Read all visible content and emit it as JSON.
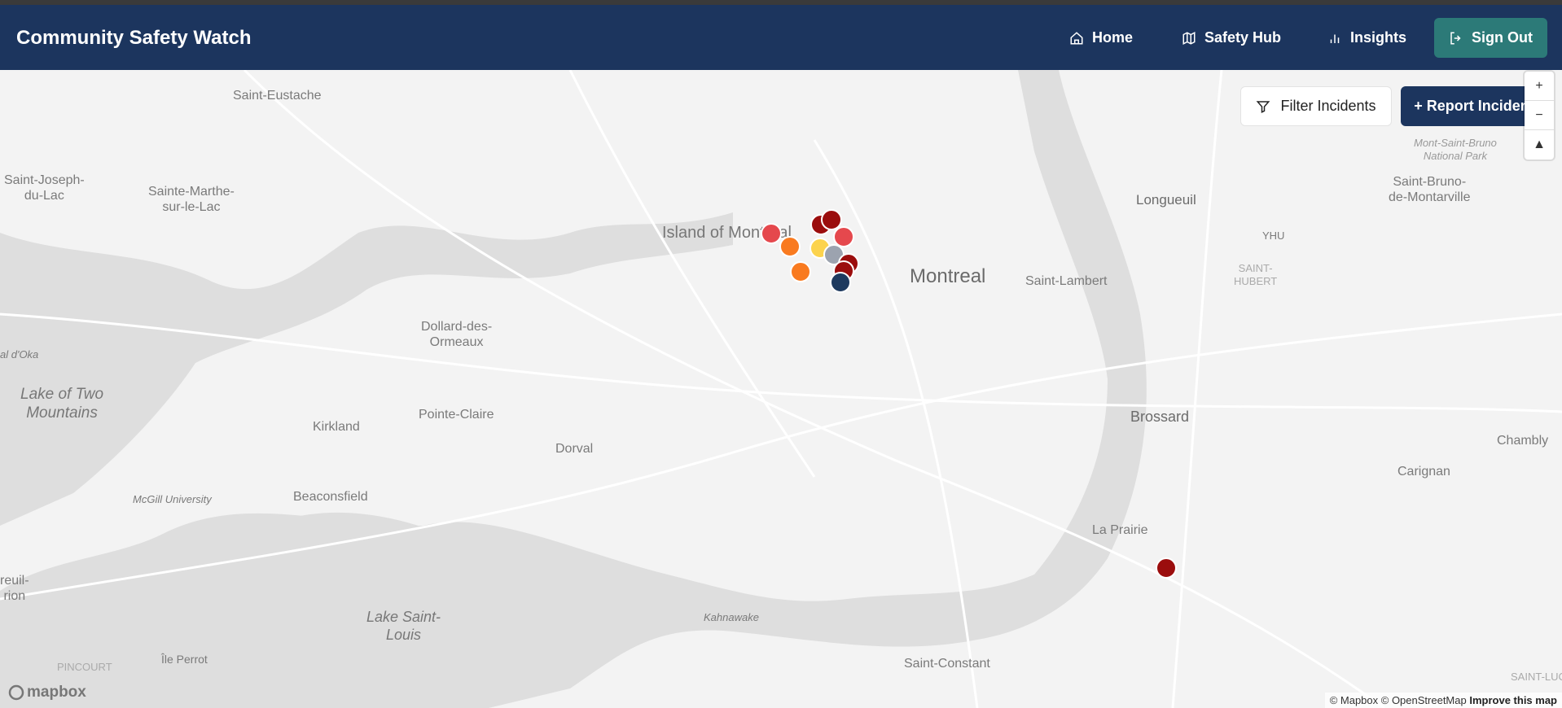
{
  "header": {
    "title": "Community Safety Watch",
    "nav": [
      {
        "label": "Home",
        "icon": "home-icon"
      },
      {
        "label": "Safety Hub",
        "icon": "map-icon"
      },
      {
        "label": "Insights",
        "icon": "bar-chart-icon"
      }
    ],
    "sign_out": "Sign Out"
  },
  "toolbar": {
    "filter": "Filter Incidents",
    "report": "+ Report Incident"
  },
  "map": {
    "labels": [
      "Saint-Eustache",
      "Saint-Joseph-\ndu-Lac",
      "Sainte-Marthe-\nsur-le-Lac",
      "Island of Montreal",
      "Montreal",
      "Longueuil",
      "YHU",
      "SAINT-\nHUBERT",
      "Saint-Lambert",
      "Mont-Saint-Bruno\nNational Park",
      "Saint-Bruno-\nde-Montarville",
      "Dollard-des-\nOrmeaux",
      "Lake of Two\nMountains",
      "Pointe-Claire",
      "Kirkland",
      "Dorval",
      "Beaconsfield",
      "McGill University",
      "Brossard",
      "Chambly",
      "Carignan",
      "La Prairie",
      "Lake Saint-\nLouis",
      "Kahnawake",
      "Saint-Constant",
      "Île Perrot",
      "PINCOURT",
      "reuil-\nrion",
      "al d'Oka",
      "SAINT-LUC"
    ],
    "attribution": {
      "text": "© Mapbox © OpenStreetMap",
      "link": "Improve this map"
    },
    "logo": "mapbox",
    "incident_colors": {
      "high": "#e5484d",
      "medium": "#f97a1f",
      "critical": "#9b0d0d",
      "low": "#fcd34d",
      "unknown": "#9ca3af",
      "other": "#1e3a5f"
    },
    "markers": [
      "high",
      "medium",
      "medium",
      "critical",
      "critical",
      "high",
      "low",
      "unknown",
      "critical",
      "critical",
      "other",
      "critical"
    ]
  }
}
